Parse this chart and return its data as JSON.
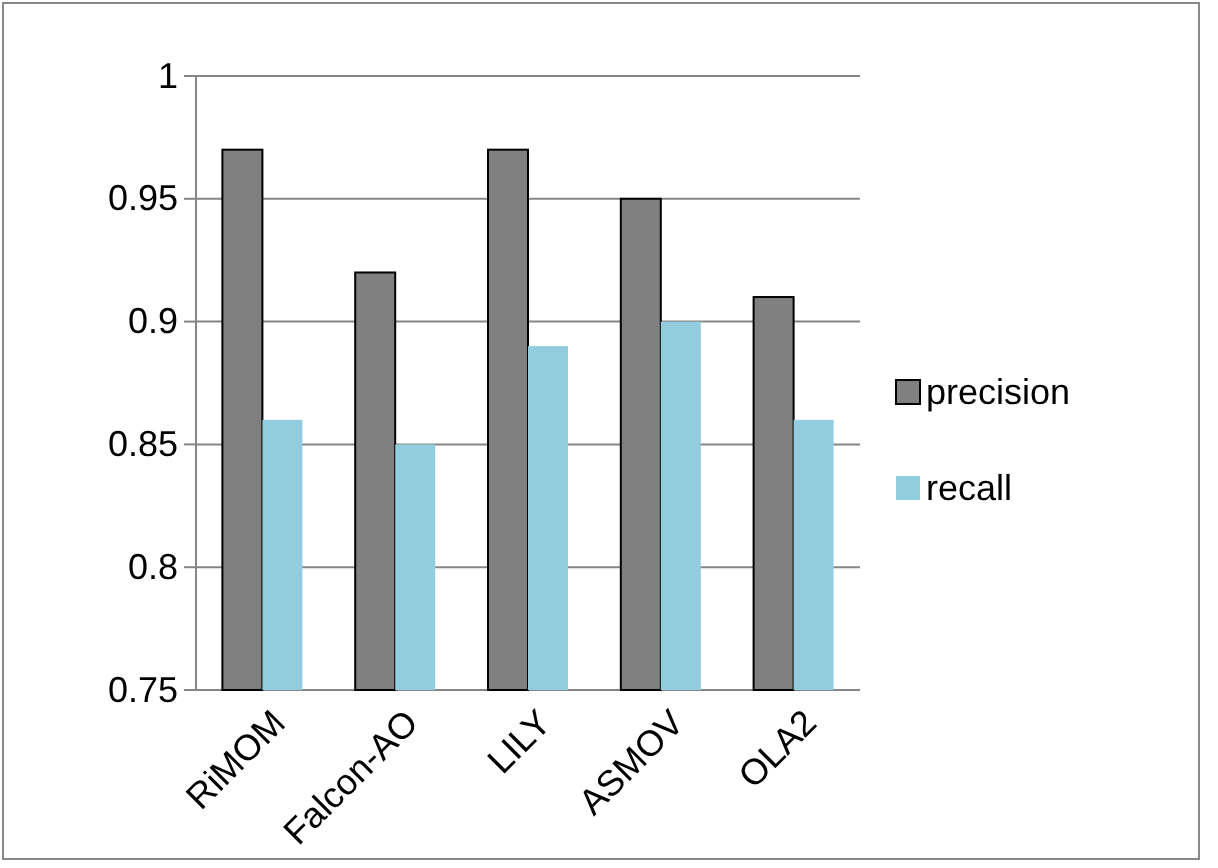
{
  "chart_data": {
    "type": "bar",
    "categories": [
      "RiMOM",
      "Falcon-AO",
      "LILY",
      "ASMOV",
      "OLA2"
    ],
    "series": [
      {
        "name": "precision",
        "color": "#808080",
        "values": [
          0.97,
          0.92,
          0.97,
          0.95,
          0.91
        ]
      },
      {
        "name": "recall",
        "color": "#92cddd",
        "values": [
          0.86,
          0.85,
          0.89,
          0.9,
          0.86
        ]
      }
    ],
    "ylim": [
      0.75,
      1
    ],
    "yticks": [
      0.75,
      0.8,
      0.85,
      0.9,
      0.95,
      1
    ],
    "grid": "y",
    "legend": "right"
  }
}
